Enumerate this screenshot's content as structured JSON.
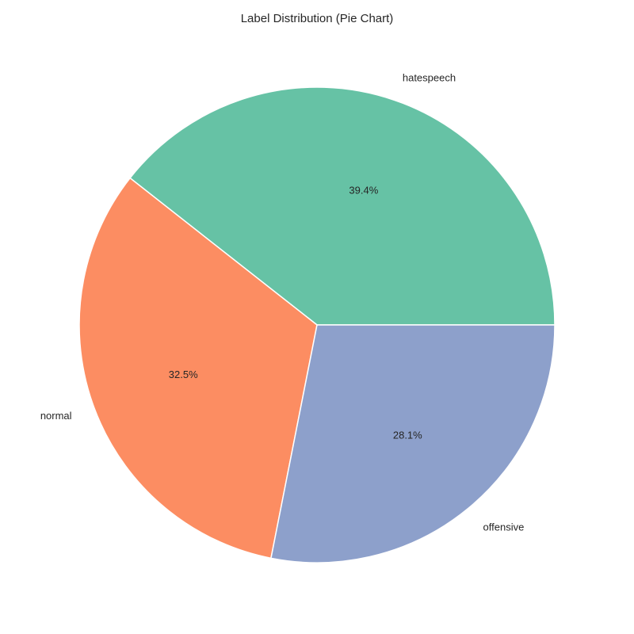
{
  "chart_data": {
    "type": "pie",
    "title": "Label Distribution (Pie Chart)",
    "slices": [
      {
        "label": "hatespeech",
        "value": 39.4,
        "percent_label": "39.4%",
        "color": "#66c2a5"
      },
      {
        "label": "normal",
        "value": 32.5,
        "percent_label": "32.5%",
        "color": "#fc8d62"
      },
      {
        "label": "offensive",
        "value": 28.1,
        "percent_label": "28.1%",
        "color": "#8da0cb"
      }
    ],
    "start_angle_deg": 0,
    "direction": "counterclockwise"
  }
}
